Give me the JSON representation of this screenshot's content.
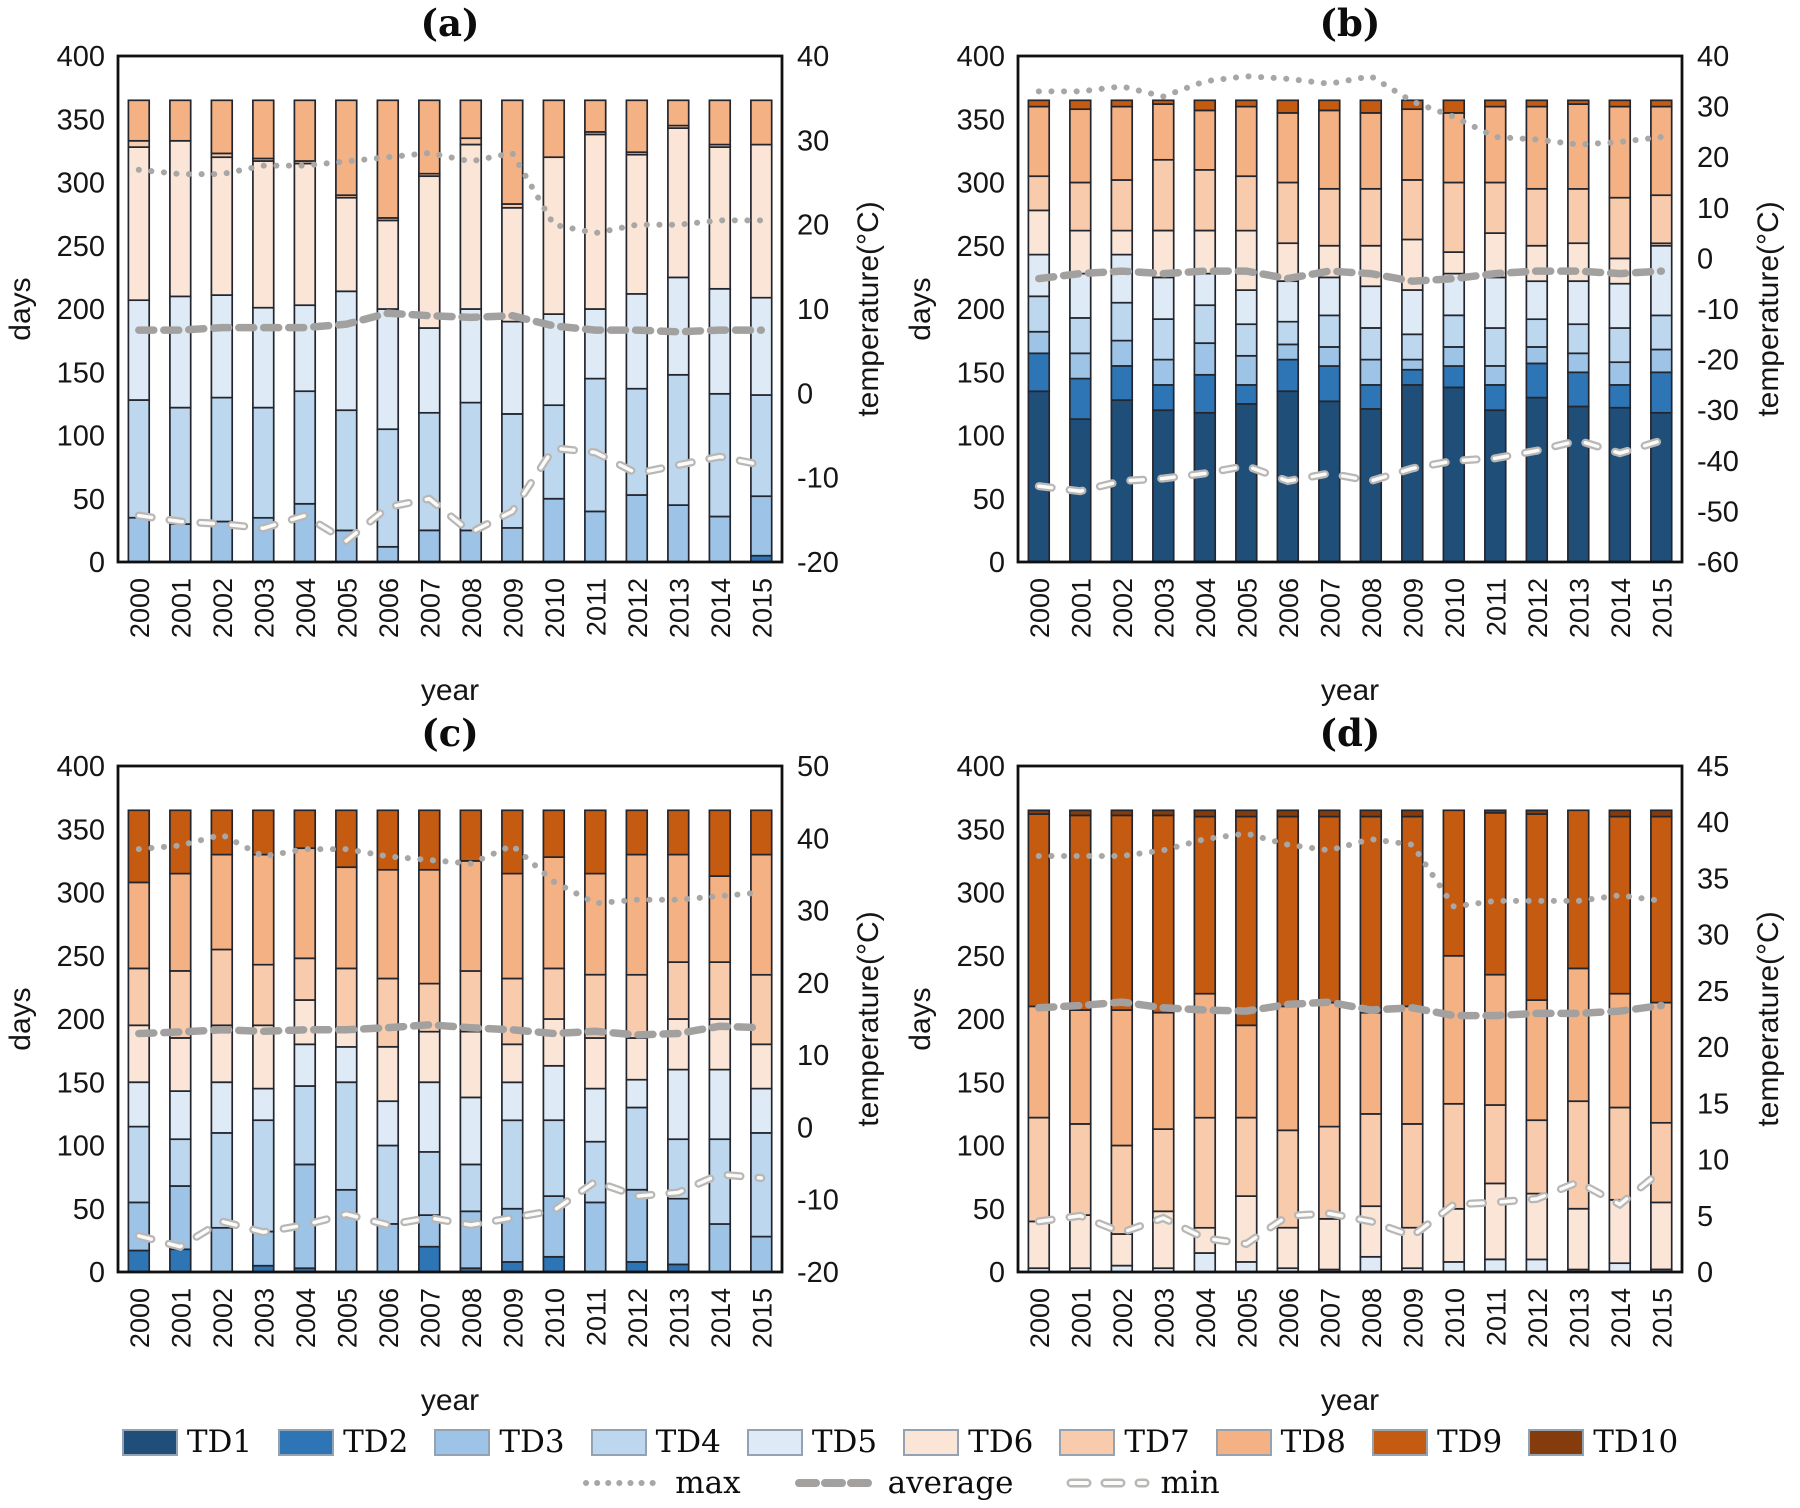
{
  "legend": {
    "items": [
      {
        "name": "TD1",
        "label": "TD1",
        "color": "#1F4E79"
      },
      {
        "name": "TD2",
        "label": "TD2",
        "color": "#2E75B6"
      },
      {
        "name": "TD3",
        "label": "TD3",
        "color": "#9DC3E6"
      },
      {
        "name": "TD4",
        "label": "TD4",
        "color": "#BDD7EE"
      },
      {
        "name": "TD5",
        "label": "TD5",
        "color": "#DEEBF7"
      },
      {
        "name": "TD6",
        "label": "TD6",
        "color": "#FBE5D6"
      },
      {
        "name": "TD7",
        "label": "TD7",
        "color": "#F8CBAD"
      },
      {
        "name": "TD8",
        "label": "TD8",
        "color": "#F4B183"
      },
      {
        "name": "TD9",
        "label": "TD9",
        "color": "#C55A11"
      },
      {
        "name": "TD10",
        "label": "TD10",
        "color": "#843C0C"
      }
    ],
    "lines": [
      {
        "label": "max",
        "style": "dotted"
      },
      {
        "label": "average",
        "style": "dash-thick"
      },
      {
        "label": "min",
        "style": "dash-hollow"
      }
    ]
  },
  "line_styles": {
    "max_color": "#a9a7a5",
    "average_color": "#a3a1a0",
    "min_outline": "#b9b7b5",
    "min_core": "#fbfbfa"
  },
  "chart_data": [
    {
      "id": "a",
      "type": "bar",
      "title": "(a)",
      "xlabel": "year",
      "ylabel_left": "days",
      "ylabel_right": "temperature(°C)",
      "ylim_left": [
        0,
        400
      ],
      "ytick_left_step": 50,
      "ylim_right": [
        -20,
        40
      ],
      "ytick_right_step": 10,
      "grid": false,
      "years": [
        "2000",
        "2001",
        "2002",
        "2003",
        "2004",
        "2005",
        "2006",
        "2007",
        "2008",
        "2009",
        "2010",
        "2011",
        "2012",
        "2013",
        "2014",
        "2015"
      ],
      "series": [
        {
          "name": "TD2",
          "values": [
            0,
            0,
            0,
            0,
            0,
            0,
            0,
            0,
            0,
            0,
            0,
            0,
            0,
            0,
            0,
            5
          ]
        },
        {
          "name": "TD3",
          "values": [
            35,
            30,
            32,
            35,
            46,
            25,
            12,
            25,
            25,
            27,
            50,
            40,
            53,
            45,
            36,
            47
          ]
        },
        {
          "name": "TD4",
          "values": [
            93,
            92,
            98,
            87,
            89,
            95,
            93,
            93,
            101,
            90,
            74,
            105,
            84,
            103,
            97,
            80
          ]
        },
        {
          "name": "TD5",
          "values": [
            79,
            88,
            81,
            79,
            68,
            94,
            95,
            67,
            74,
            73,
            72,
            55,
            75,
            77,
            83,
            77
          ]
        },
        {
          "name": "TD6",
          "values": [
            121,
            123,
            109,
            116,
            112,
            74,
            70,
            120,
            130,
            90,
            124,
            138,
            110,
            118,
            112,
            121
          ]
        },
        {
          "name": "TD7",
          "values": [
            5,
            0,
            3,
            2,
            2,
            2,
            2,
            2,
            5,
            3,
            0,
            2,
            2,
            2,
            2,
            0
          ]
        },
        {
          "name": "TD8",
          "values": [
            32,
            32,
            42,
            46,
            48,
            75,
            93,
            58,
            30,
            82,
            45,
            25,
            41,
            20,
            35,
            35
          ]
        }
      ],
      "lines": {
        "max": [
          26.5,
          26,
          26,
          27,
          27,
          27.5,
          28,
          28.5,
          27.5,
          28.5,
          20,
          19,
          20,
          20,
          20.5,
          20.5
        ],
        "average": [
          7.5,
          7.5,
          7.8,
          7.8,
          7.8,
          8.2,
          9.5,
          9.2,
          9,
          9.2,
          8,
          7.5,
          7.5,
          7.3,
          7.5,
          7.5
        ],
        "min": [
          -14.5,
          -15.2,
          -15.5,
          -16,
          -14.5,
          -17.5,
          -13.5,
          -12.5,
          -16.5,
          -14,
          -6.5,
          -7,
          -9.5,
          -8.5,
          -7.5,
          -8.5
        ]
      }
    },
    {
      "id": "b",
      "type": "bar",
      "title": "(b)",
      "xlabel": "year",
      "ylabel_left": "days",
      "ylabel_right": "temperature(°C)",
      "ylim_left": [
        0,
        400
      ],
      "ytick_left_step": 50,
      "ylim_right": [
        -60,
        40
      ],
      "ytick_right_step": 10,
      "grid": false,
      "years": [
        "2000",
        "2001",
        "2002",
        "2003",
        "2004",
        "2005",
        "2006",
        "2007",
        "2008",
        "2009",
        "2010",
        "2011",
        "2012",
        "2013",
        "2014",
        "2015"
      ],
      "series": [
        {
          "name": "TD1",
          "values": [
            135,
            113,
            128,
            120,
            118,
            125,
            135,
            127,
            121,
            140,
            138,
            120,
            130,
            123,
            122,
            118
          ]
        },
        {
          "name": "TD2",
          "values": [
            30,
            32,
            27,
            20,
            30,
            15,
            25,
            28,
            19,
            12,
            17,
            20,
            27,
            27,
            18,
            32
          ]
        },
        {
          "name": "TD3",
          "values": [
            17,
            20,
            20,
            20,
            25,
            23,
            12,
            15,
            20,
            8,
            15,
            15,
            13,
            15,
            18,
            18
          ]
        },
        {
          "name": "TD4",
          "values": [
            28,
            28,
            30,
            32,
            30,
            25,
            18,
            25,
            25,
            20,
            25,
            30,
            22,
            23,
            27,
            27
          ]
        },
        {
          "name": "TD5",
          "values": [
            33,
            35,
            38,
            33,
            25,
            27,
            32,
            30,
            33,
            35,
            33,
            40,
            30,
            34,
            35,
            55
          ]
        },
        {
          "name": "TD6",
          "values": [
            35,
            34,
            19,
            37,
            34,
            47,
            30,
            25,
            32,
            40,
            17,
            35,
            28,
            30,
            20,
            2
          ]
        },
        {
          "name": "TD7",
          "values": [
            27,
            38,
            40,
            56,
            48,
            43,
            48,
            45,
            45,
            47,
            55,
            40,
            45,
            43,
            48,
            38
          ]
        },
        {
          "name": "TD8",
          "values": [
            55,
            58,
            58,
            44,
            47,
            55,
            55,
            62,
            60,
            56,
            55,
            60,
            65,
            67,
            72,
            70
          ]
        },
        {
          "name": "TD9",
          "values": [
            5,
            7,
            5,
            3,
            8,
            5,
            10,
            8,
            10,
            7,
            10,
            5,
            5,
            3,
            5,
            5
          ]
        }
      ],
      "lines": {
        "max": [
          33,
          33,
          34,
          32,
          35,
          36,
          35.5,
          34.5,
          36,
          31,
          28,
          24,
          23.5,
          22.5,
          23,
          24
        ],
        "average": [
          -4,
          -3,
          -2.5,
          -3,
          -2.5,
          -2.5,
          -4,
          -2.5,
          -3,
          -4.5,
          -4,
          -3,
          -2.5,
          -2.5,
          -3,
          -2.5
        ],
        "min": [
          -45,
          -46,
          -44,
          -43.5,
          -42.5,
          -41,
          -44,
          -42.5,
          -44,
          -41.5,
          -40,
          -39.5,
          -38,
          -36,
          -38.5,
          -36
        ]
      }
    },
    {
      "id": "c",
      "type": "bar",
      "title": "(c)",
      "xlabel": "year",
      "ylabel_left": "days",
      "ylabel_right": "temperature(°C)",
      "ylim_left": [
        0,
        400
      ],
      "ytick_left_step": 50,
      "ylim_right": [
        -20,
        50
      ],
      "ytick_right_step": 10,
      "grid": false,
      "years": [
        "2000",
        "2001",
        "2002",
        "2003",
        "2004",
        "2005",
        "2006",
        "2007",
        "2008",
        "2009",
        "2010",
        "2011",
        "2012",
        "2013",
        "2014",
        "2015"
      ],
      "series": [
        {
          "name": "TD2",
          "values": [
            17,
            18,
            0,
            5,
            3,
            0,
            0,
            20,
            3,
            8,
            12,
            0,
            8,
            6,
            0,
            0
          ]
        },
        {
          "name": "TD3",
          "values": [
            38,
            50,
            35,
            27,
            82,
            65,
            38,
            25,
            45,
            42,
            48,
            55,
            57,
            52,
            38,
            28
          ]
        },
        {
          "name": "TD4",
          "values": [
            60,
            37,
            75,
            88,
            62,
            85,
            62,
            50,
            37,
            70,
            60,
            48,
            65,
            47,
            67,
            82
          ]
        },
        {
          "name": "TD5",
          "values": [
            35,
            38,
            40,
            25,
            33,
            28,
            35,
            55,
            53,
            30,
            43,
            42,
            22,
            55,
            55,
            35
          ]
        },
        {
          "name": "TD6",
          "values": [
            45,
            42,
            45,
            50,
            35,
            15,
            43,
            40,
            52,
            30,
            37,
            40,
            33,
            40,
            40,
            35
          ]
        },
        {
          "name": "TD7",
          "values": [
            45,
            53,
            60,
            48,
            33,
            47,
            54,
            38,
            48,
            52,
            40,
            50,
            50,
            45,
            45,
            55
          ]
        },
        {
          "name": "TD8",
          "values": [
            68,
            77,
            75,
            87,
            87,
            80,
            86,
            90,
            87,
            83,
            88,
            80,
            95,
            85,
            68,
            95
          ]
        },
        {
          "name": "TD9",
          "values": [
            57,
            50,
            35,
            35,
            30,
            45,
            47,
            47,
            40,
            50,
            37,
            50,
            35,
            35,
            52,
            35
          ]
        }
      ],
      "lines": {
        "max": [
          38.5,
          39,
          40.5,
          37.5,
          38.5,
          38.5,
          37.5,
          37,
          36.5,
          39,
          34,
          31,
          31.5,
          31.5,
          32,
          32.5
        ],
        "average": [
          13,
          13.2,
          13.5,
          13.3,
          13.5,
          13.5,
          13.8,
          14.2,
          13.8,
          13.5,
          13,
          13.3,
          12.8,
          13,
          14,
          13.8
        ],
        "min": [
          -15,
          -16.5,
          -13,
          -14.5,
          -13.5,
          -12,
          -13.5,
          -12.5,
          -13.5,
          -12.5,
          -11.5,
          -7.5,
          -9.5,
          -9,
          -6.5,
          -7
        ]
      }
    },
    {
      "id": "d",
      "type": "bar",
      "title": "(d)",
      "xlabel": "year",
      "ylabel_left": "days",
      "ylabel_right": "temperature(°C)",
      "ylim_left": [
        0,
        400
      ],
      "ytick_left_step": 50,
      "ylim_right": [
        0,
        45
      ],
      "ytick_right_step": 5,
      "grid": false,
      "years": [
        "2000",
        "2001",
        "2002",
        "2003",
        "2004",
        "2005",
        "2006",
        "2007",
        "2008",
        "2009",
        "2010",
        "2011",
        "2012",
        "2013",
        "2014",
        "2015"
      ],
      "series": [
        {
          "name": "TD5",
          "values": [
            3,
            3,
            5,
            3,
            15,
            8,
            3,
            2,
            12,
            3,
            8,
            10,
            10,
            2,
            7,
            2
          ]
        },
        {
          "name": "TD6",
          "values": [
            37,
            42,
            25,
            45,
            20,
            52,
            32,
            40,
            40,
            32,
            42,
            60,
            52,
            48,
            50,
            53
          ]
        },
        {
          "name": "TD7",
          "values": [
            82,
            72,
            70,
            65,
            87,
            62,
            77,
            73,
            73,
            82,
            83,
            62,
            58,
            85,
            73,
            63
          ]
        },
        {
          "name": "TD8",
          "values": [
            88,
            90,
            107,
            92,
            98,
            73,
            98,
            98,
            80,
            93,
            117,
            103,
            95,
            105,
            90,
            95
          ]
        },
        {
          "name": "TD9",
          "values": [
            152,
            154,
            154,
            156,
            140,
            165,
            150,
            147,
            155,
            150,
            115,
            128,
            147,
            125,
            140,
            147
          ]
        },
        {
          "name": "TD10",
          "values": [
            3,
            4,
            4,
            4,
            5,
            5,
            5,
            5,
            5,
            5,
            0,
            2,
            3,
            0,
            5,
            5
          ]
        }
      ],
      "lines": {
        "max": [
          37,
          37,
          37,
          37.5,
          38.5,
          39,
          38,
          37.5,
          38.5,
          38,
          32.5,
          33,
          33,
          33,
          33.5,
          33
        ],
        "average": [
          23.5,
          23.7,
          24,
          23.5,
          23.3,
          23.2,
          23.8,
          24,
          23.3,
          23.5,
          22.8,
          22.8,
          23,
          23,
          23.2,
          23.7
        ],
        "min": [
          4.5,
          5,
          3.5,
          4.8,
          3,
          2.5,
          5,
          5.2,
          4.5,
          3.2,
          6,
          6.2,
          6.5,
          8,
          6,
          9
        ]
      }
    }
  ]
}
